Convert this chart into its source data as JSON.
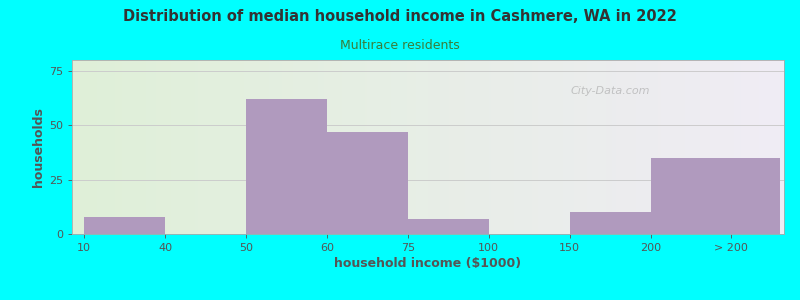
{
  "title": "Distribution of median household income in Cashmere, WA in 2022",
  "subtitle": "Multirace residents",
  "xlabel": "household income ($1000)",
  "ylabel": "households",
  "background_color": "#00FFFF",
  "plot_bg_left": "#dff0d8",
  "plot_bg_right": "#f0ecf5",
  "bar_color": "#b09abe",
  "title_color": "#333333",
  "subtitle_color": "#3a7d3a",
  "axis_label_color": "#555555",
  "tick_color": "#555555",
  "yticks": [
    0,
    25,
    50,
    75
  ],
  "ylim": [
    0,
    80
  ],
  "xtick_labels": [
    "10",
    "40",
    "50",
    "60",
    "75",
    "100",
    "150",
    "200",
    "> 200"
  ],
  "xtick_positions": [
    0,
    1,
    2,
    3,
    4,
    5,
    6,
    7,
    8
  ],
  "bars": [
    {
      "x_start": 0,
      "x_end": 1,
      "height": 8
    },
    {
      "x_start": 2,
      "x_end": 3,
      "height": 62
    },
    {
      "x_start": 3,
      "x_end": 4,
      "height": 47
    },
    {
      "x_start": 4,
      "x_end": 5,
      "height": 7
    },
    {
      "x_start": 6,
      "x_end": 7,
      "height": 10
    },
    {
      "x_start": 7,
      "x_end": 8.6,
      "height": 35
    }
  ],
  "watermark": "City-Data.com",
  "grid_color": "#cccccc",
  "xlim": [
    -0.15,
    8.65
  ]
}
